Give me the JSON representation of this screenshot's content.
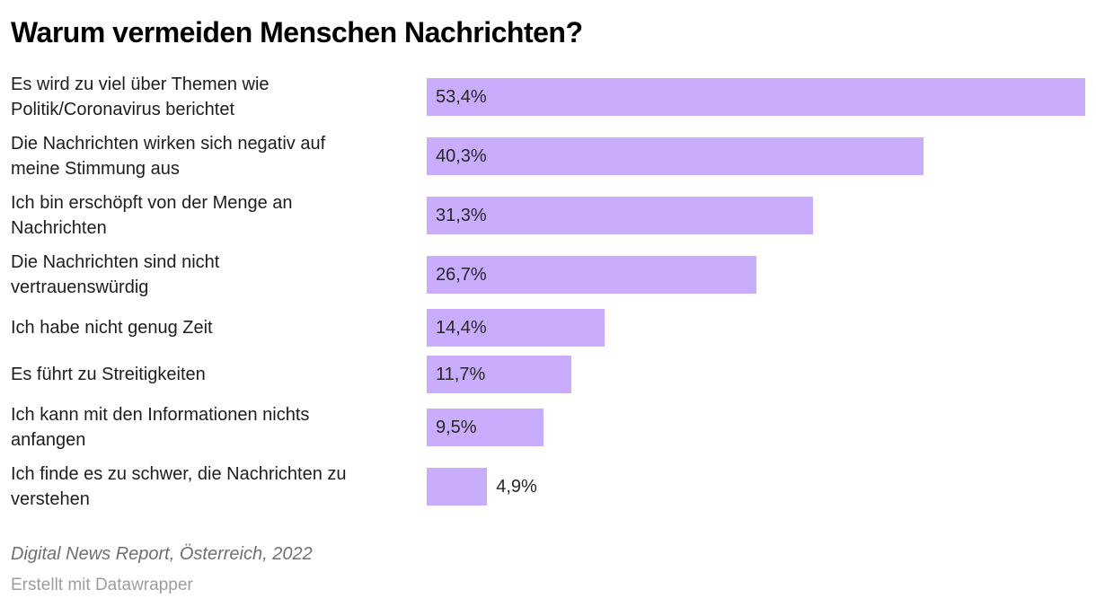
{
  "chart_data": {
    "type": "bar",
    "title": "Warum vermeiden Menschen Nachrichten?",
    "categories": [
      "Es wird zu viel über Themen wie\nPolitik/Coronavirus berichtet",
      "Die Nachrichten wirken sich negativ auf\nmeine Stimmung aus",
      "Ich bin erschöpft von der Menge an\nNachrichten",
      "Die Nachrichten sind nicht\nvertrauenswürdig",
      "Ich habe nicht genug Zeit",
      "Es führt zu Streitigkeiten",
      "Ich kann mit den Informationen nichts\nanfangen",
      "Ich finde es zu schwer, die Nachrichten zu\nverstehen"
    ],
    "values": [
      53.4,
      40.3,
      31.3,
      26.7,
      14.4,
      11.7,
      9.5,
      4.9
    ],
    "value_labels": [
      "53,4%",
      "40,3%",
      "31,3%",
      "26,7%",
      "14,4%",
      "11,7%",
      "9,5%",
      "4,9%"
    ],
    "value_label_placement": [
      "inside",
      "inside",
      "inside",
      "inside",
      "inside",
      "inside",
      "inside",
      "outside"
    ],
    "xlim": [
      0,
      53.4
    ],
    "bar_color": "#c9adfc",
    "grid": false,
    "legend": "none",
    "orientation": "horizontal"
  },
  "footer": {
    "source": "Digital News Report, Österreich, 2022",
    "byline": "Erstellt mit Datawrapper"
  }
}
